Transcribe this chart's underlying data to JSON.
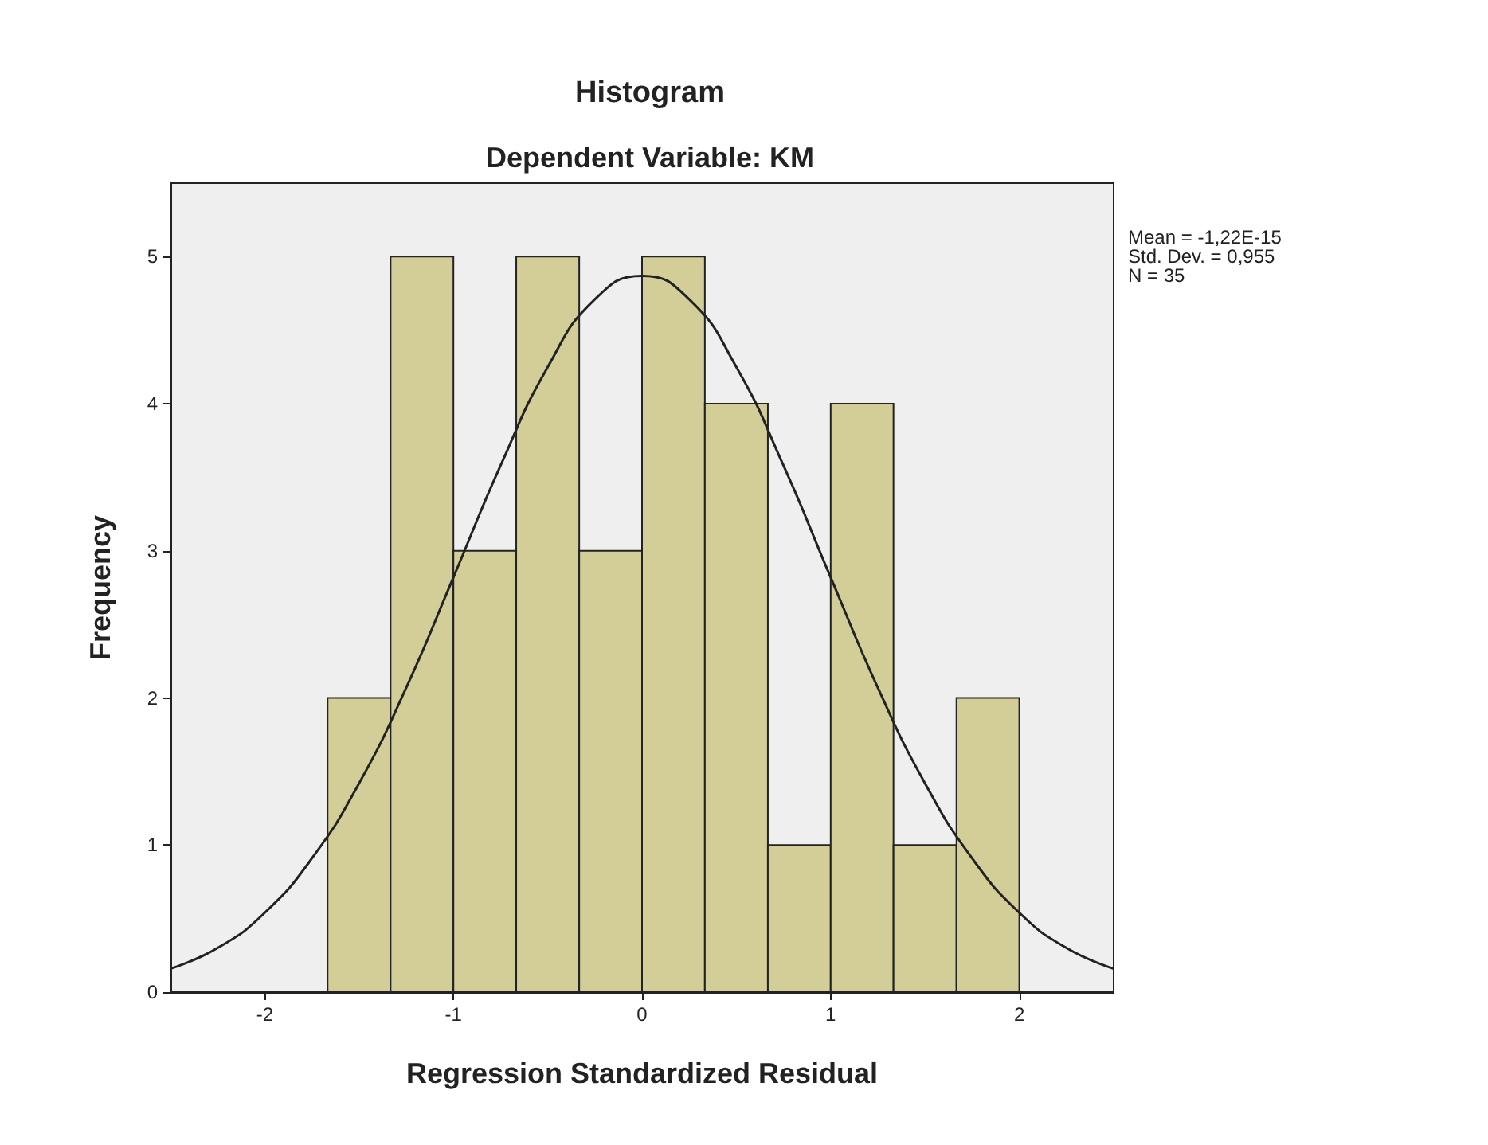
{
  "chart_data": {
    "type": "histogram",
    "title": "Histogram",
    "subtitle": "Dependent Variable: KM",
    "xlabel": "Regression Standardized Residual",
    "ylabel": "Frequency",
    "bins": [
      -1.667,
      -1.333,
      -1,
      -0.667,
      -0.333,
      0,
      0.333,
      0.667,
      1,
      1.333,
      1.667,
      2
    ],
    "values": [
      2,
      5,
      3,
      5,
      3,
      5,
      4,
      1,
      4,
      1,
      2
    ],
    "color": "#d3ce97",
    "series": [
      {
        "type": "line",
        "color": "#222222",
        "x": [
          -2.5,
          -2.25,
          -2,
          -1.75,
          -1.5,
          -1.25,
          -1,
          -0.75,
          -0.5,
          -0.25,
          0,
          0.25,
          0.5,
          0.75,
          1,
          1.25,
          1.5,
          1.75,
          2,
          2.25,
          2.5
        ],
        "values": [
          0.16,
          0.3,
          0.54,
          0.91,
          1.42,
          2.07,
          2.82,
          3.58,
          4.25,
          4.71,
          4.87,
          4.71,
          4.25,
          3.58,
          2.82,
          2.07,
          1.42,
          0.91,
          0.54,
          0.3,
          0.16
        ]
      }
    ],
    "xlim": [
      -2.5,
      2.5
    ],
    "xticks": [
      -2,
      -1,
      0,
      1,
      2
    ],
    "ylim": [
      0,
      5.5
    ],
    "yticks": [
      0,
      1,
      2,
      3,
      4,
      5
    ],
    "grid": false,
    "marker": "none",
    "annotations": [
      "Mean = -1,22E-15",
      "Std. Dev. = 0,955",
      "N = 35"
    ]
  }
}
